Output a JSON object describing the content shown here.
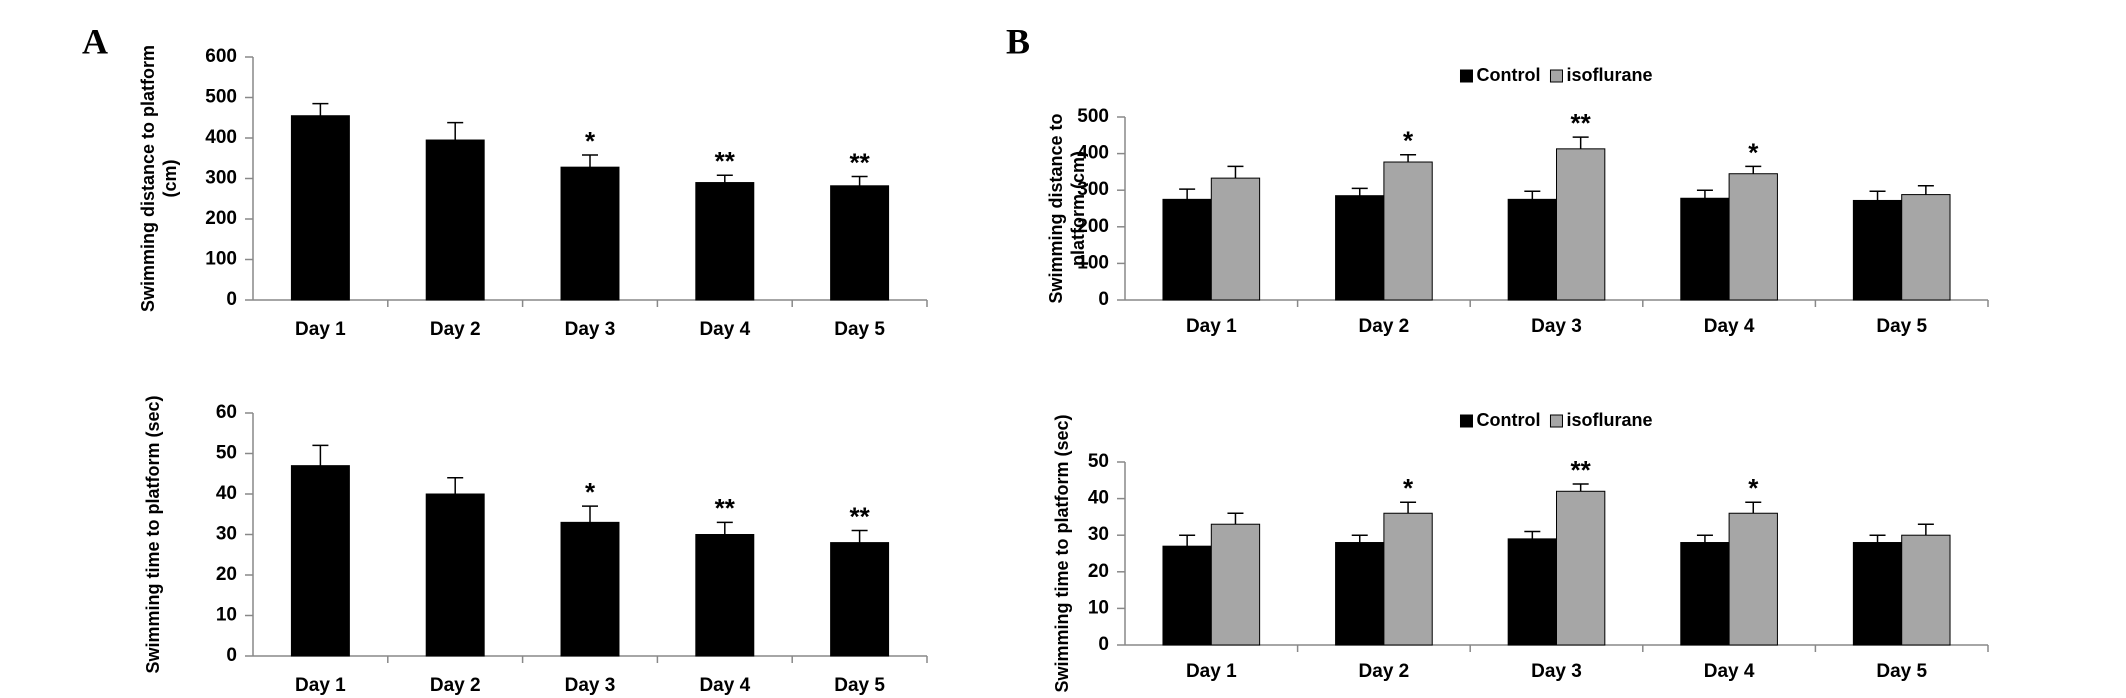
{
  "chart_data": [
    {
      "type": "bar",
      "panel": "A",
      "ylabel": [
        "Swimming distance to platform",
        "(cm)"
      ],
      "categories": [
        "Day 1",
        "Day 2",
        "Day 3",
        "Day 4",
        "Day 5"
      ],
      "values": [
        455,
        395,
        328,
        290,
        282
      ],
      "errors": [
        30,
        43,
        30,
        18,
        23
      ],
      "color": "#000000",
      "ylim": [
        0,
        600
      ],
      "yticks": [
        0,
        100,
        200,
        300,
        400,
        500,
        600
      ],
      "annotations": [
        {
          "text": "*",
          "category": "Day 3"
        },
        {
          "text": "**",
          "category": "Day 4"
        },
        {
          "text": "**",
          "category": "Day 5"
        }
      ]
    },
    {
      "type": "bar",
      "ylabel": [
        "Swimming time to platform (sec)"
      ],
      "categories": [
        "Day 1",
        "Day 2",
        "Day 3",
        "Day 4",
        "Day 5"
      ],
      "values": [
        47,
        40,
        33,
        30,
        28
      ],
      "errors": [
        5,
        4,
        4,
        3,
        3
      ],
      "color": "#000000",
      "ylim": [
        0,
        60
      ],
      "yticks": [
        0,
        10,
        20,
        30,
        40,
        50,
        60
      ],
      "annotations": [
        {
          "text": "*",
          "category": "Day 3"
        },
        {
          "text": "**",
          "category": "Day 4"
        },
        {
          "text": "**",
          "category": "Day 5"
        }
      ]
    },
    {
      "type": "bar",
      "panel": "B",
      "ylabel": [
        "Swimming distance to",
        "platform (cm)"
      ],
      "categories": [
        "Day 1",
        "Day 2",
        "Day 3",
        "Day 4",
        "Day 5"
      ],
      "series": [
        {
          "name": "Control",
          "color": "#000000",
          "values": [
            275,
            285,
            275,
            278,
            272
          ],
          "errors": [
            28,
            20,
            22,
            22,
            25
          ]
        },
        {
          "name": "isoflurane",
          "color": "#a6a6a6",
          "values": [
            333,
            377,
            413,
            345,
            288
          ],
          "errors": [
            32,
            20,
            32,
            20,
            24
          ]
        }
      ],
      "ylim": [
        0,
        500
      ],
      "yticks": [
        0,
        100,
        200,
        300,
        400,
        500
      ],
      "annotations": [
        {
          "text": "*",
          "category": "Day 2",
          "series": "isoflurane"
        },
        {
          "text": "**",
          "category": "Day 3",
          "series": "isoflurane"
        },
        {
          "text": "*",
          "category": "Day 4",
          "series": "isoflurane"
        }
      ]
    },
    {
      "type": "bar",
      "ylabel": [
        "Swimming time to platform (sec)"
      ],
      "categories": [
        "Day 1",
        "Day 2",
        "Day 3",
        "Day 4",
        "Day 5"
      ],
      "series": [
        {
          "name": "Control",
          "color": "#000000",
          "values": [
            27,
            28,
            29,
            28,
            28
          ],
          "errors": [
            3,
            2,
            2,
            2,
            2
          ]
        },
        {
          "name": "isoflurane",
          "color": "#a6a6a6",
          "values": [
            33,
            36,
            42,
            36,
            30
          ],
          "errors": [
            3,
            3,
            2,
            3,
            3
          ]
        }
      ],
      "ylim": [
        0,
        50
      ],
      "yticks": [
        0,
        10,
        20,
        30,
        40,
        50
      ],
      "annotations": [
        {
          "text": "*",
          "category": "Day 2",
          "series": "isoflurane"
        },
        {
          "text": "**",
          "category": "Day 3",
          "series": "isoflurane"
        },
        {
          "text": "*",
          "category": "Day 4",
          "series": "isoflurane"
        }
      ]
    }
  ]
}
